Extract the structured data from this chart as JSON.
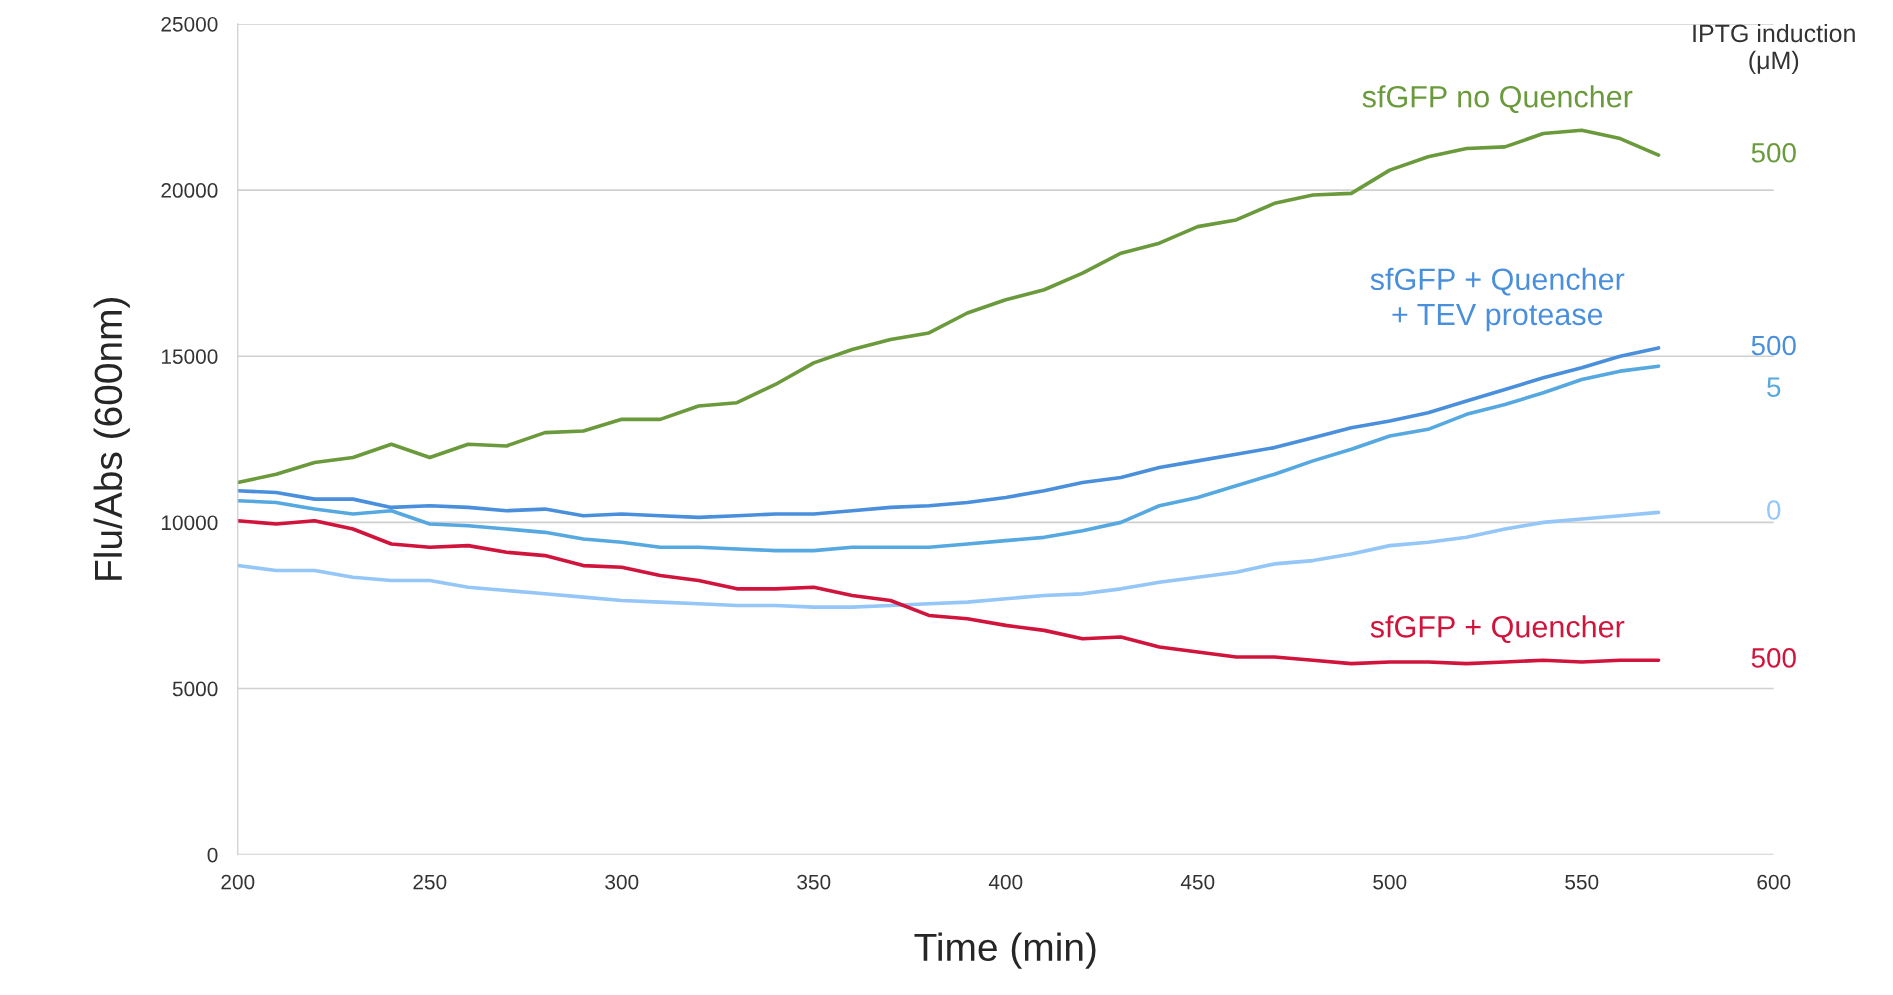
{
  "chart_data": {
    "type": "line",
    "xlabel": "Time (min)",
    "ylabel": "Flu/Abs (600nm)",
    "legend_title": "IPTG induction\n(μM)",
    "x": [
      200,
      210,
      220,
      230,
      240,
      250,
      260,
      270,
      280,
      290,
      300,
      310,
      320,
      330,
      340,
      350,
      360,
      370,
      380,
      390,
      400,
      410,
      420,
      430,
      440,
      450,
      460,
      470,
      480,
      490,
      500,
      510,
      520,
      530,
      540,
      550,
      560,
      570
    ],
    "series": [
      {
        "name": "500",
        "color": "#6a9a3c",
        "values": [
          11200,
          11450,
          11800,
          11950,
          12350,
          11950,
          12350,
          12300,
          12700,
          12750,
          13100,
          13100,
          13500,
          13600,
          14150,
          14800,
          15200,
          15500,
          15700,
          16300,
          16700,
          17000,
          17500,
          18100,
          18400,
          18900,
          19100,
          19600,
          19850,
          19900,
          20600,
          21000,
          21250,
          21300,
          21700,
          21800,
          21550,
          21050
        ]
      },
      {
        "name": "500",
        "color": "#4a8fdc",
        "values": [
          10950,
          10900,
          10700,
          10700,
          10450,
          10500,
          10450,
          10350,
          10400,
          10200,
          10250,
          10200,
          10150,
          10200,
          10250,
          10250,
          10350,
          10450,
          10500,
          10600,
          10750,
          10950,
          11200,
          11350,
          11650,
          11850,
          12050,
          12250,
          12550,
          12850,
          13050,
          13300,
          13650,
          14000,
          14350,
          14650,
          15000,
          15250
        ]
      },
      {
        "name": "5",
        "color": "#56a8e0",
        "values": [
          10650,
          10600,
          10400,
          10250,
          10350,
          9950,
          9900,
          9800,
          9700,
          9500,
          9400,
          9250,
          9250,
          9200,
          9150,
          9150,
          9250,
          9250,
          9250,
          9350,
          9450,
          9550,
          9750,
          10000,
          10500,
          10750,
          11100,
          11450,
          11850,
          12200,
          12600,
          12800,
          13250,
          13550,
          13900,
          14300,
          14550,
          14700
        ]
      },
      {
        "name": "0",
        "color": "#94c6f7",
        "values": [
          8700,
          8550,
          8550,
          8350,
          8250,
          8250,
          8050,
          7950,
          7850,
          7750,
          7650,
          7600,
          7550,
          7500,
          7500,
          7450,
          7450,
          7500,
          7550,
          7600,
          7700,
          7800,
          7850,
          8000,
          8200,
          8350,
          8500,
          8750,
          8850,
          9050,
          9300,
          9400,
          9550,
          9800,
          10000,
          10100,
          10200,
          10300
        ]
      },
      {
        "name": "500",
        "color": "#d0143c",
        "values": [
          10050,
          9950,
          10050,
          9800,
          9350,
          9250,
          9300,
          9100,
          9000,
          8700,
          8650,
          8400,
          8250,
          8000,
          8000,
          8050,
          7800,
          7650,
          7200,
          7100,
          6900,
          6750,
          6500,
          6550,
          6250,
          6100,
          5950,
          5950,
          5850,
          5750,
          5800,
          5800,
          5750,
          5800,
          5850,
          5800,
          5850,
          5850
        ]
      }
    ],
    "annotations": [
      "sfGFP no Quencher",
      "sfGFP + Quencher\n+ TEV protease",
      "sfGFP + Quencher"
    ],
    "xlim": [
      200,
      600
    ],
    "xticks": [
      200,
      250,
      300,
      350,
      400,
      450,
      500,
      550,
      600
    ],
    "ylim": [
      0,
      25000
    ],
    "yticks": [
      0,
      5000,
      10000,
      15000,
      20000,
      25000
    ],
    "grid": "y",
    "legend": false,
    "line_style": "solid",
    "marker": "none"
  }
}
